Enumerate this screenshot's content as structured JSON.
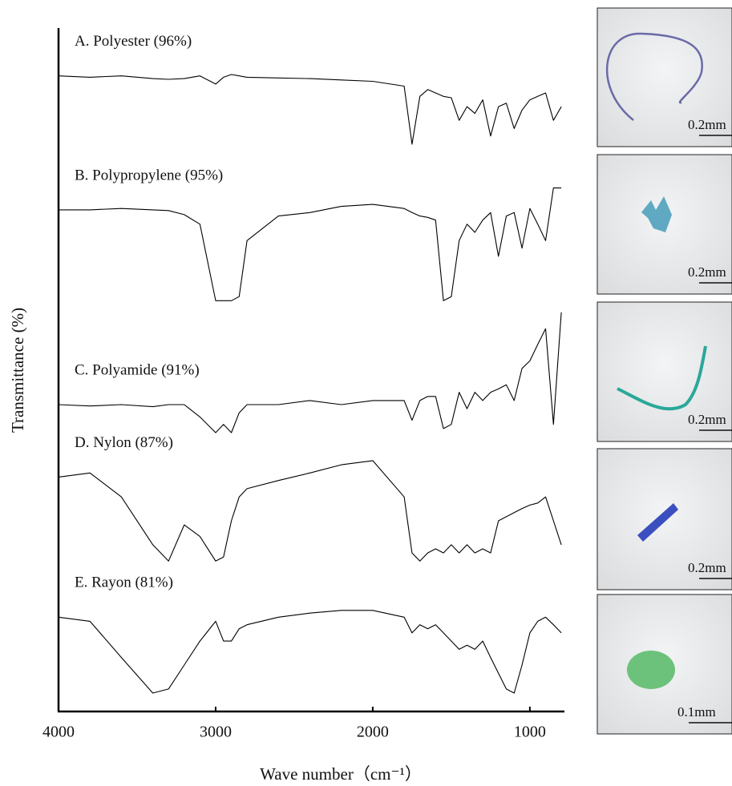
{
  "chart_data": {
    "type": "line",
    "y_label": "Transmittance (%)",
    "x_label": "Wave number（cm⁻¹）",
    "xlim": [
      4000,
      785
    ],
    "xticks": [
      4000,
      3000,
      2000,
      1000
    ],
    "ylim": [
      0,
      100
    ],
    "x": [
      4000,
      3800,
      3600,
      3400,
      3300,
      3200,
      3100,
      3000,
      2950,
      2900,
      2850,
      2800,
      2600,
      2400,
      2200,
      2000,
      1800,
      1750,
      1700,
      1650,
      1600,
      1550,
      1500,
      1450,
      1400,
      1350,
      1300,
      1250,
      1200,
      1150,
      1100,
      1050,
      1000,
      950,
      900,
      850,
      800
    ],
    "series": [
      {
        "name": "A. Polyester (96%)",
        "color": "#000000",
        "values": [
          93,
          92.8,
          93,
          92.6,
          92.5,
          92.6,
          93,
          91.8,
          92.8,
          93.2,
          93,
          92.8,
          92.7,
          92.6,
          92.4,
          92.2,
          91.5,
          83,
          90,
          91,
          90.5,
          90,
          89.8,
          86.5,
          88.5,
          87.5,
          89.5,
          84.2,
          88.5,
          89,
          85.3,
          88,
          89.5,
          90,
          90.5,
          86.5,
          88.5
        ]
      },
      {
        "name": "B. Polypropylene (95%)",
        "color": "#000000",
        "values": [
          73.4,
          73.4,
          73.6,
          73.4,
          73.3,
          72.7,
          71.3,
          60.1,
          60.1,
          60.1,
          60.7,
          68.9,
          72.5,
          73.0,
          73.9,
          74.2,
          73.6,
          73.0,
          72.5,
          72.3,
          71.9,
          60.1,
          60.7,
          68.9,
          71.3,
          70.1,
          71.9,
          73.0,
          66.6,
          72.5,
          73.0,
          67.8,
          73.6,
          71.3,
          68.9,
          76.6,
          76.6
        ]
      },
      {
        "name": "C. Polyamide (91%)",
        "color": "#000000",
        "values": [
          44.9,
          44.7,
          44.9,
          44.6,
          44.9,
          44.9,
          43.1,
          40.8,
          42.0,
          40.8,
          43.7,
          44.9,
          44.9,
          45.5,
          44.9,
          45.5,
          45.5,
          42.6,
          45.5,
          46.1,
          46.1,
          41.4,
          42.0,
          46.7,
          44.3,
          46.7,
          45.5,
          46.7,
          47.2,
          47.8,
          45.5,
          50.2,
          51.3,
          53.7,
          56.0,
          42.0,
          58.4
        ]
      },
      {
        "name": "D. Nylon (87%)",
        "color": "#000000",
        "values": [
          34.3,
          34.9,
          31.4,
          24.4,
          22.0,
          27.3,
          25.6,
          22.0,
          22.6,
          27.9,
          31.4,
          32.6,
          33.8,
          34.9,
          36.1,
          36.7,
          31.4,
          23.2,
          22.0,
          23.2,
          23.8,
          23.2,
          24.4,
          23.2,
          24.4,
          23.2,
          23.8,
          23.2,
          27.9,
          28.5,
          29.1,
          29.7,
          30.2,
          30.5,
          31.4,
          27.9,
          24.4
        ]
      },
      {
        "name": "E. Rayon (81%)",
        "color": "#000000",
        "values": [
          13.8,
          13.2,
          7.9,
          2.7,
          3.3,
          6.8,
          10.3,
          13.2,
          10.3,
          10.3,
          12.1,
          12.7,
          13.8,
          14.4,
          14.8,
          14.8,
          13.8,
          11.5,
          12.7,
          12.1,
          12.7,
          11.5,
          10.3,
          9.1,
          9.7,
          9.1,
          10.3,
          7.9,
          5.6,
          3.3,
          2.7,
          6.8,
          11.5,
          13.2,
          13.8,
          12.7,
          11.5
        ]
      }
    ]
  },
  "photos": [
    {
      "scale_label": "0.2mm"
    },
    {
      "scale_label": "0.2mm"
    },
    {
      "scale_label": "0.2mm"
    },
    {
      "scale_label": "0.2mm"
    },
    {
      "scale_label": "0.1mm"
    }
  ]
}
